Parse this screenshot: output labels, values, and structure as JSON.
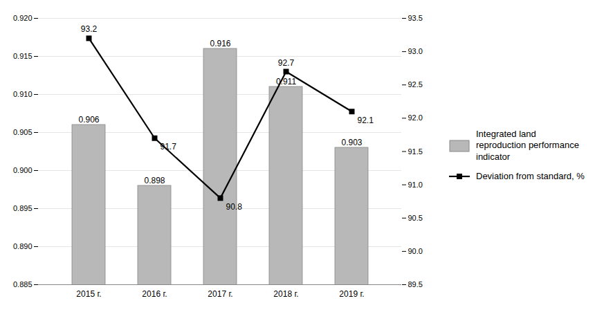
{
  "chart_data": {
    "type": "bar",
    "categories": [
      "2015 г.",
      "2016 г.",
      "2017 г.",
      "2018 г.",
      "2019 г."
    ],
    "series": [
      {
        "name": "Integrated land\nreproduction performance\nindicator",
        "type": "bar",
        "color": "#b8b8b8",
        "values": [
          0.906,
          0.898,
          0.916,
          0.911,
          0.903
        ]
      },
      {
        "name": "Deviation from standard, %",
        "type": "line",
        "axis": "y2",
        "color": "#000000",
        "marker": "square",
        "values": [
          93.2,
          91.7,
          90.8,
          92.7,
          92.1
        ]
      }
    ],
    "ylim": [
      0.885,
      0.92
    ],
    "yticks": [
      0.885,
      {
        "value": 0.89,
        "label": "0.890"
      },
      0.895,
      {
        "value": 0.9,
        "label": "0.900"
      },
      0.905,
      {
        "value": 0.91,
        "label": "0.910"
      },
      0.915,
      {
        "value": 0.92,
        "label": "0.920"
      }
    ],
    "y2lim": [
      89.5,
      93.5
    ],
    "y2ticks": [
      89.5,
      {
        "value": 90,
        "label": "90.0"
      },
      90.5,
      {
        "value": 91,
        "label": "91.0"
      },
      91.5,
      {
        "value": 92,
        "label": "92.0"
      },
      92.5,
      {
        "value": 93,
        "label": "93.0"
      },
      93.5
    ],
    "grid": true,
    "legend": "right",
    "data_labels": true
  }
}
